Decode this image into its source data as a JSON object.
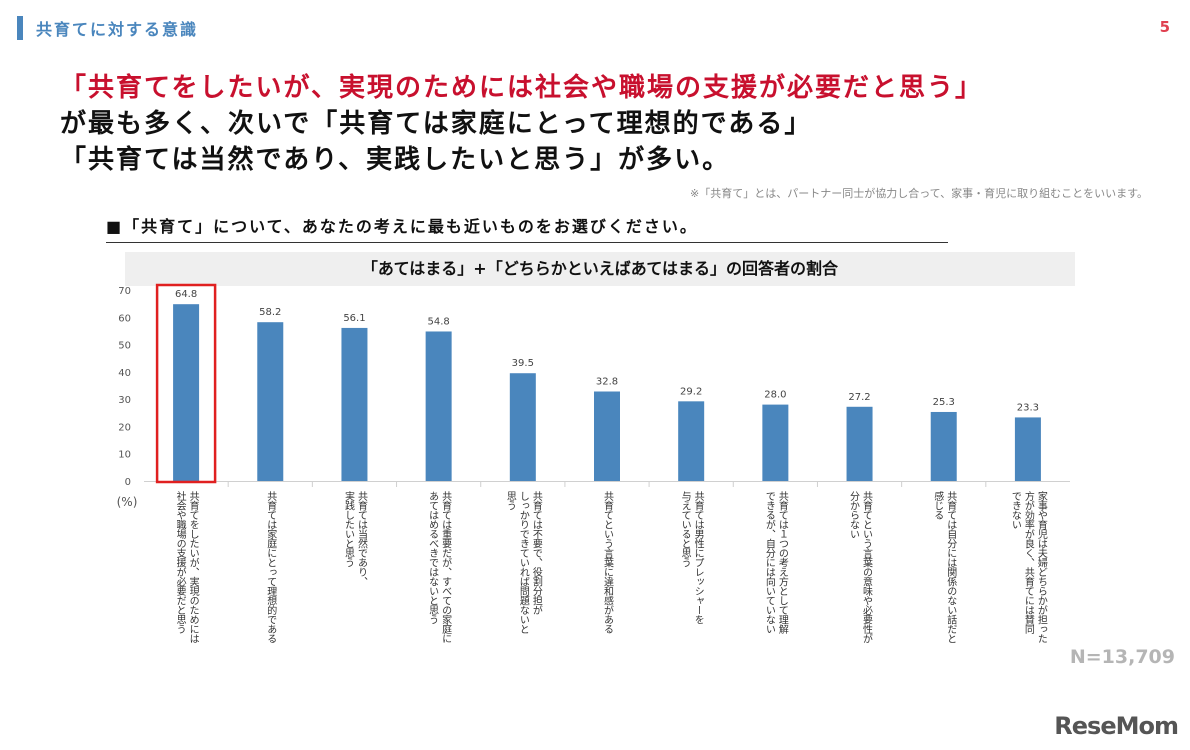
{
  "section_title": "共育てに対する意識",
  "page_number": "5",
  "headline": {
    "line1": "「共育てをしたいが、実現のためには社会や職場の支援が必要だと思う」",
    "line2": "が最も多く、次いで「共育ては家庭にとって理想的である」",
    "line3": "「共育ては当然であり、実践したいと思う」が多い。"
  },
  "footnote": "※「共育て」とは、パートナー同士が協力し合って、家事・育児に取り組むことをいいます。",
  "question": "■「共育て」について、あなたの考えに最も近いものをお選びください。",
  "n_label": "N=13,709",
  "logo": "ReseMom",
  "colors": {
    "bar": "#4a86bd",
    "highlight": "#e02020",
    "accent": "#4a86bd",
    "headline_red": "#c8102e"
  },
  "chart_data": {
    "type": "bar",
    "title": "「あてはまる」+「どちらかといえばあてはまる」の回答者の割合",
    "ylabel": "(%)",
    "ylim": [
      0,
      70
    ],
    "yticks": [
      0,
      10,
      20,
      30,
      40,
      50,
      60,
      70
    ],
    "grid": false,
    "highlight_index": 0,
    "categories": [
      [
        "共育てをしたいが、実現のためには",
        "社会や職場の支援が必要だと思う"
      ],
      [
        "共育ては家庭にとって理想的である"
      ],
      [
        "共育ては当然であり、",
        "実践したいと思う"
      ],
      [
        "共育ては重要だが、すべての家庭に",
        "あてはめるべきではないと思う"
      ],
      [
        "共育ては不要で、役割分担が",
        "しっかりできていれば問題ないと",
        "思う"
      ],
      [
        "共育てという言葉に違和感がある"
      ],
      [
        "共育ては男性にプレッシャーを",
        "与えていると思う"
      ],
      [
        "共育ては１つの考え方として理解",
        "できるが、自分には向いていない"
      ],
      [
        "共育てという言葉の意味や必要性が",
        "分からない"
      ],
      [
        "共育ては自分には関係のない話だと",
        "感じる"
      ],
      [
        "家事や育児は夫婦どちらかが担った",
        "方が効率が良く、共育てには賛同",
        "できない"
      ]
    ],
    "values": [
      64.8,
      58.2,
      56.1,
      54.8,
      39.5,
      32.8,
      29.2,
      28.0,
      27.2,
      25.3,
      23.3
    ],
    "value_labels": [
      "64.8",
      "58.2",
      "56.1",
      "54.8",
      "39.5",
      "32.8",
      "29.2",
      "28.0",
      "27.2",
      "25.3",
      "23.3"
    ]
  }
}
